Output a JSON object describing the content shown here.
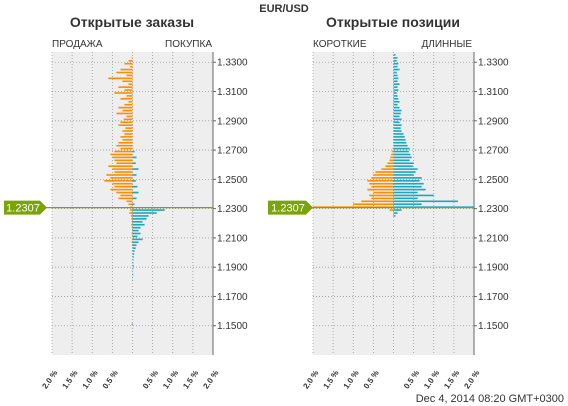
{
  "title": "EUR/USD",
  "timestamp": "Dec 4, 2014 08:20 GMT+0300",
  "current_price": "1.2307",
  "colors": {
    "short_sell": "#ff8c00",
    "long_buy": "#1aa7c0",
    "price_marker": "#7aa40a",
    "plot_bg": "#eeeeee",
    "grid": "#9a9a9a"
  },
  "chart_data": [
    {
      "type": "bar",
      "orientation": "horizontal-diverging",
      "title": "Открытые заказы",
      "left_label": "ПРОДАЖА",
      "right_label": "ПОКУПКА",
      "y_ticks": [
        "1.3300",
        "1.3100",
        "1.2900",
        "1.2700",
        "1.2500",
        "1.2300",
        "1.2100",
        "1.1900",
        "1.1700",
        "1.1500"
      ],
      "x_ticks": [
        "2.0 %",
        "1.5 %",
        "1.0 %",
        "0.5 %",
        "0.5 %",
        "1.0 %",
        "1.5 %",
        "2.0 %"
      ],
      "ylim": [
        1.13,
        1.337
      ],
      "xlim": [
        -2.0,
        2.0
      ],
      "current_price": 1.2307,
      "series": [
        {
          "name": "ПРОДАЖА",
          "color": "#ff8c00",
          "side": "left",
          "prices": [
            1.333,
            1.331,
            1.329,
            1.327,
            1.325,
            1.323,
            1.321,
            1.319,
            1.317,
            1.315,
            1.313,
            1.311,
            1.309,
            1.307,
            1.305,
            1.303,
            1.301,
            1.299,
            1.297,
            1.295,
            1.293,
            1.291,
            1.289,
            1.287,
            1.285,
            1.283,
            1.281,
            1.279,
            1.277,
            1.275,
            1.273,
            1.271,
            1.269,
            1.267,
            1.265,
            1.263,
            1.261,
            1.259,
            1.257,
            1.255,
            1.253,
            1.251,
            1.249,
            1.247,
            1.245,
            1.243,
            1.241,
            1.239,
            1.237,
            1.235,
            1.233,
            1.231,
            1.229,
            1.227,
            1.225,
            1.223,
            1.221,
            1.219,
            1.217,
            1.215,
            1.213,
            1.211,
            1.209,
            1.207,
            1.205,
            1.203,
            1.201,
            1.199,
            1.197,
            1.195,
            1.193,
            1.191,
            1.189,
            1.187,
            1.185,
            1.183,
            1.181,
            1.179,
            1.177,
            1.175,
            1.173,
            1.171,
            1.169,
            1.167,
            1.165,
            1.163,
            1.161,
            1.159,
            1.157,
            1.155,
            1.153,
            1.151,
            1.149
          ],
          "values": [
            0.02,
            0.1,
            0.2,
            0.06,
            0.3,
            0.4,
            0.15,
            0.6,
            0.25,
            0.1,
            0.35,
            0.2,
            0.45,
            0.15,
            0.3,
            0.1,
            0.2,
            0.35,
            0.25,
            0.4,
            0.15,
            0.22,
            0.3,
            0.35,
            0.18,
            0.25,
            0.2,
            0.3,
            0.25,
            0.35,
            0.4,
            0.3,
            0.45,
            0.55,
            0.5,
            0.45,
            0.4,
            0.6,
            0.5,
            0.45,
            0.65,
            0.55,
            0.7,
            0.5,
            0.45,
            0.55,
            0.4,
            0.3,
            0.35,
            0.15,
            0.1,
            0.05,
            0.06,
            0.08,
            0.04,
            0.03,
            0.02,
            0.03,
            0.02,
            0.01,
            0.02,
            0.01,
            0.01,
            0.02,
            0.01,
            0.0,
            0.0,
            0.0,
            0.0,
            0.0,
            0.0,
            0.0,
            0.0,
            0.0,
            0.0,
            0.0,
            0.0,
            0.0,
            0.0,
            0.0,
            0.0,
            0.0,
            0.0,
            0.0,
            0.0,
            0.0,
            0.0,
            0.0,
            0.0,
            0.0,
            0.0,
            0.02,
            0.0
          ]
        },
        {
          "name": "ПОКУПКА",
          "color": "#1aa7c0",
          "side": "right",
          "prices": [
            1.329,
            1.325,
            1.321,
            1.317,
            1.313,
            1.309,
            1.305,
            1.301,
            1.297,
            1.293,
            1.289,
            1.285,
            1.281,
            1.277,
            1.273,
            1.269,
            1.265,
            1.261,
            1.257,
            1.253,
            1.249,
            1.245,
            1.241,
            1.237,
            1.233,
            1.229,
            1.227,
            1.225,
            1.223,
            1.221,
            1.219,
            1.217,
            1.215,
            1.213,
            1.211,
            1.209,
            1.207,
            1.205,
            1.203,
            1.201,
            1.199,
            1.197,
            1.195,
            1.193,
            1.191,
            1.189,
            1.187,
            1.185,
            1.183,
            1.181,
            1.179,
            1.151
          ],
          "values": [
            0.0,
            0.0,
            0.0,
            0.0,
            0.0,
            0.0,
            0.0,
            0.0,
            0.0,
            0.0,
            0.0,
            0.0,
            0.0,
            0.0,
            0.0,
            0.05,
            0.1,
            0.08,
            0.15,
            0.1,
            0.08,
            0.12,
            0.15,
            0.1,
            0.05,
            0.8,
            0.6,
            0.4,
            0.35,
            0.25,
            0.3,
            0.2,
            0.15,
            0.2,
            0.12,
            0.25,
            0.15,
            0.1,
            0.08,
            0.05,
            0.04,
            0.03,
            0.02,
            0.02,
            0.03,
            0.02,
            0.01,
            0.02,
            0.01,
            0.01,
            0.0,
            0.01
          ]
        }
      ]
    },
    {
      "type": "bar",
      "orientation": "horizontal-diverging",
      "title": "Открытые позиции",
      "left_label": "КОРОТКИЕ",
      "right_label": "ДЛИННЫЕ",
      "y_ticks": [
        "1.3300",
        "1.3100",
        "1.2900",
        "1.2700",
        "1.2500",
        "1.2300",
        "1.2100",
        "1.1900",
        "1.1700",
        "1.1500"
      ],
      "x_ticks": [
        "2.0 %",
        "1.5 %",
        "1.0 %",
        "0.5 %",
        "0.5 %",
        "1.0 %",
        "1.5 %",
        "2.0 %"
      ],
      "ylim": [
        1.13,
        1.337
      ],
      "xlim": [
        -2.0,
        2.0
      ],
      "current_price": 1.2307,
      "series": [
        {
          "name": "КОРОТКИЕ",
          "color": "#ff8c00",
          "side": "left",
          "prices": [
            1.271,
            1.269,
            1.267,
            1.265,
            1.263,
            1.261,
            1.259,
            1.257,
            1.255,
            1.253,
            1.251,
            1.249,
            1.247,
            1.245,
            1.243,
            1.241,
            1.239,
            1.237,
            1.235,
            1.233,
            1.231,
            1.229
          ],
          "values": [
            0.02,
            0.04,
            0.06,
            0.08,
            0.1,
            0.15,
            0.2,
            0.3,
            0.45,
            0.5,
            0.55,
            0.65,
            0.6,
            0.55,
            0.65,
            0.5,
            0.6,
            0.55,
            0.8,
            1.0,
            2.0,
            0.1
          ]
        },
        {
          "name": "ДЛИННЫЕ",
          "color": "#1aa7c0",
          "side": "right",
          "prices": [
            1.335,
            1.333,
            1.331,
            1.329,
            1.327,
            1.325,
            1.323,
            1.321,
            1.319,
            1.317,
            1.315,
            1.313,
            1.311,
            1.309,
            1.307,
            1.305,
            1.303,
            1.301,
            1.299,
            1.297,
            1.295,
            1.293,
            1.291,
            1.289,
            1.287,
            1.285,
            1.283,
            1.281,
            1.279,
            1.277,
            1.275,
            1.273,
            1.271,
            1.269,
            1.267,
            1.265,
            1.263,
            1.261,
            1.259,
            1.257,
            1.255,
            1.253,
            1.251,
            1.249,
            1.247,
            1.245,
            1.243,
            1.241,
            1.239,
            1.237,
            1.235,
            1.233,
            1.231,
            1.229,
            1.227,
            1.225
          ],
          "values": [
            0.05,
            0.1,
            0.08,
            0.12,
            0.1,
            0.15,
            0.08,
            0.1,
            0.12,
            0.1,
            0.15,
            0.1,
            0.12,
            0.08,
            0.1,
            0.12,
            0.15,
            0.1,
            0.15,
            0.2,
            0.18,
            0.15,
            0.2,
            0.15,
            0.2,
            0.18,
            0.2,
            0.25,
            0.28,
            0.3,
            0.32,
            0.35,
            0.4,
            0.38,
            0.42,
            0.45,
            0.4,
            0.5,
            0.48,
            0.6,
            0.55,
            0.5,
            0.7,
            0.65,
            0.75,
            0.7,
            0.8,
            0.6,
            1.0,
            0.6,
            1.6,
            0.7,
            2.0,
            0.2,
            0.1,
            0.05
          ]
        }
      ]
    }
  ]
}
